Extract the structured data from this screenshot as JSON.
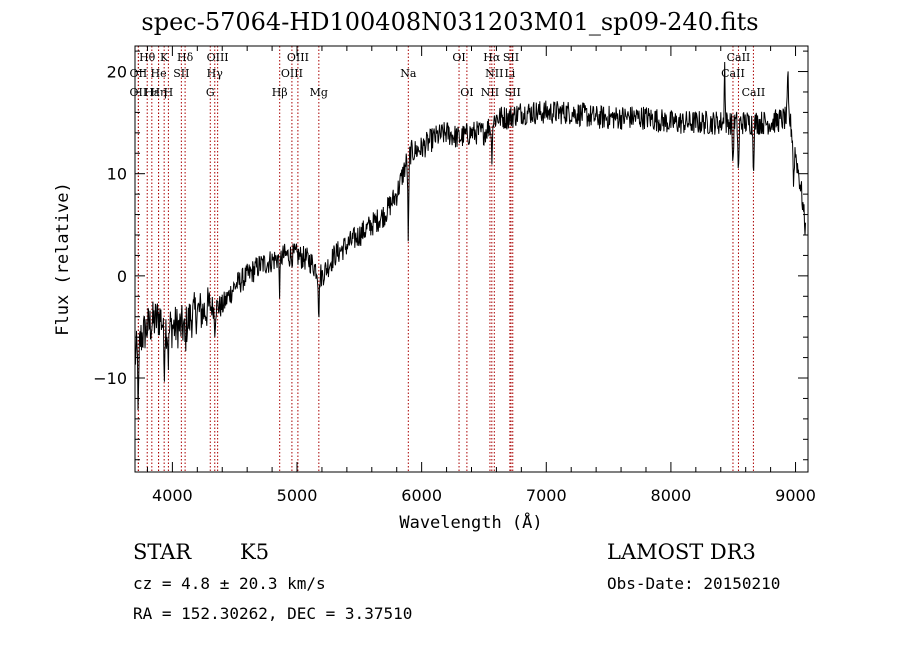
{
  "title": "spec-57064-HD100408N031203M01_sp09-240.fits",
  "info": {
    "object_class": "STAR",
    "subclass": "K5",
    "survey": "LAMOST DR3",
    "cz": "cz = 4.8 ± 20.3 km/s",
    "obs_date": "Obs-Date: 20150210",
    "coords": "RA = 152.30262, DEC =   3.37510"
  },
  "colors": {
    "spectrum": "#000000",
    "lines": "#aa0000",
    "axes": "#000000"
  },
  "chart_data": {
    "type": "line",
    "title": "spec-57064-HD100408N031203M01_sp09-240.fits",
    "xlabel": "Wavelength (Å)",
    "ylabel": "Flux (relative)",
    "xlim": [
      3700,
      9100
    ],
    "ylim": [
      -19.2,
      22.5
    ],
    "xticks": [
      4000,
      5000,
      6000,
      7000,
      8000,
      9000
    ],
    "yticks": [
      -10,
      0,
      10,
      20
    ],
    "grid": false,
    "continuum": [
      [
        3700,
        -8
      ],
      [
        3750,
        -6
      ],
      [
        3800,
        -5
      ],
      [
        3850,
        -4.5
      ],
      [
        3900,
        -4
      ],
      [
        3950,
        -5
      ],
      [
        4000,
        -5
      ],
      [
        4050,
        -5
      ],
      [
        4100,
        -5
      ],
      [
        4150,
        -4
      ],
      [
        4200,
        -3.5
      ],
      [
        4250,
        -3.5
      ],
      [
        4300,
        -3
      ],
      [
        4400,
        -3
      ],
      [
        4500,
        -1
      ],
      [
        4600,
        0
      ],
      [
        4700,
        1
      ],
      [
        4800,
        1.5
      ],
      [
        4900,
        2
      ],
      [
        5000,
        2
      ],
      [
        5100,
        1.5
      ],
      [
        5200,
        0
      ],
      [
        5300,
        2
      ],
      [
        5400,
        3
      ],
      [
        5500,
        4
      ],
      [
        5600,
        5
      ],
      [
        5700,
        6
      ],
      [
        5800,
        8
      ],
      [
        5900,
        12
      ],
      [
        6000,
        12.5
      ],
      [
        6100,
        13.5
      ],
      [
        6200,
        14
      ],
      [
        6300,
        13.5
      ],
      [
        6400,
        14
      ],
      [
        6500,
        14
      ],
      [
        6600,
        15.5
      ],
      [
        6700,
        15.5
      ],
      [
        6800,
        16
      ],
      [
        7000,
        16
      ],
      [
        7200,
        16
      ],
      [
        7400,
        15.5
      ],
      [
        7600,
        15.5
      ],
      [
        7800,
        15.5
      ],
      [
        8000,
        15
      ],
      [
        8200,
        15
      ],
      [
        8400,
        15
      ],
      [
        8600,
        15
      ],
      [
        8800,
        15
      ],
      [
        8950,
        15.5
      ],
      [
        9000,
        12
      ],
      [
        9050,
        8
      ],
      [
        9100,
        2
      ]
    ],
    "absorption_features": [
      {
        "wavelength": 3727,
        "depth": 6
      },
      {
        "wavelength": 3934,
        "depth": 4
      },
      {
        "wavelength": 3968,
        "depth": 3
      },
      {
        "wavelength": 4102,
        "depth": 2
      },
      {
        "wavelength": 4340,
        "depth": 2
      },
      {
        "wavelength": 4861,
        "depth": 3
      },
      {
        "wavelength": 5175,
        "depth": 4
      },
      {
        "wavelength": 5893,
        "depth": 8
      },
      {
        "wavelength": 6563,
        "depth": 3
      },
      {
        "wavelength": 8498,
        "depth": 4
      },
      {
        "wavelength": 8542,
        "depth": 5
      },
      {
        "wavelength": 8662,
        "depth": 4
      },
      {
        "wavelength": 8985,
        "depth": 4
      }
    ],
    "emission_features": [
      {
        "wavelength": 8431,
        "height": 6
      },
      {
        "wavelength": 8938,
        "height": 4
      }
    ],
    "noise_amplitude": 1.2,
    "spectral_lines": [
      {
        "label": "Hθ",
        "wavelength": 3798,
        "row": 1
      },
      {
        "label": "K",
        "wavelength": 3934,
        "row": 1
      },
      {
        "label": "Hδ",
        "wavelength": 4102,
        "row": 1
      },
      {
        "label": "OIII",
        "wavelength": 4363,
        "row": 1
      },
      {
        "label": "OIII",
        "wavelength": 5007,
        "row": 1
      },
      {
        "label": "OI",
        "wavelength": 6300,
        "row": 1
      },
      {
        "label": "Hα",
        "wavelength": 6563,
        "row": 1
      },
      {
        "label": "SII",
        "wavelength": 6717,
        "row": 1
      },
      {
        "label": "CaII",
        "wavelength": 8542,
        "row": 1
      },
      {
        "label": "OII",
        "wavelength": 3727,
        "row": 2
      },
      {
        "label": "He",
        "wavelength": 3889,
        "row": 2
      },
      {
        "label": "SII",
        "wavelength": 4072,
        "row": 2
      },
      {
        "label": "Hγ",
        "wavelength": 4340,
        "row": 2
      },
      {
        "label": "OIII",
        "wavelength": 4959,
        "row": 2
      },
      {
        "label": "Na",
        "wavelength": 5893,
        "row": 2
      },
      {
        "label": "NII",
        "wavelength": 6583,
        "row": 2
      },
      {
        "label": "Li",
        "wavelength": 6708,
        "row": 2
      },
      {
        "label": "CaII",
        "wavelength": 8498,
        "row": 2
      },
      {
        "label": "OII",
        "wavelength": 3727,
        "row": 3
      },
      {
        "label": "Hε",
        "wavelength": 3835,
        "row": 3
      },
      {
        "label": "Hη",
        "wavelength": 3889,
        "row": 3
      },
      {
        "label": "H",
        "wavelength": 3968,
        "row": 3
      },
      {
        "label": "G",
        "wavelength": 4304,
        "row": 3
      },
      {
        "label": "Hβ",
        "wavelength": 4861,
        "row": 3
      },
      {
        "label": "Mg",
        "wavelength": 5175,
        "row": 3
      },
      {
        "label": "OI",
        "wavelength": 6363,
        "row": 3
      },
      {
        "label": "NII",
        "wavelength": 6548,
        "row": 3
      },
      {
        "label": "SII",
        "wavelength": 6731,
        "row": 3
      },
      {
        "label": "CaII",
        "wavelength": 8662,
        "row": 3
      }
    ]
  }
}
